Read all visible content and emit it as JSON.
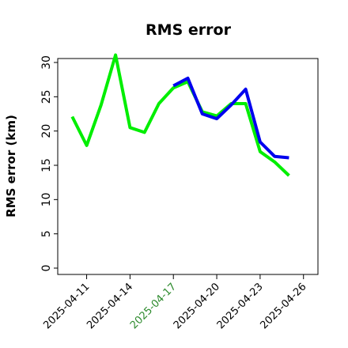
{
  "chart_data": {
    "type": "line",
    "title": "RMS error",
    "xlabel": "",
    "ylabel": "RMS error (km)",
    "ylim": [
      0,
      31.5
    ],
    "xlim": [
      "2025-04-09",
      "2025-04-27"
    ],
    "yticks": [
      0,
      5,
      10,
      15,
      20,
      25,
      30
    ],
    "xticks": [
      {
        "date": "2025-04-11",
        "label": "2025-04-11",
        "color": "#000000"
      },
      {
        "date": "2025-04-14",
        "label": "2025-04-14",
        "color": "#000000"
      },
      {
        "date": "2025-04-17",
        "label": "2025-04-17",
        "color": "#2e8b2e"
      },
      {
        "date": "2025-04-20",
        "label": "2025-04-20",
        "color": "#000000"
      },
      {
        "date": "2025-04-23",
        "label": "2025-04-23",
        "color": "#000000"
      },
      {
        "date": "2025-04-26",
        "label": "2025-04-26",
        "color": "#000000"
      }
    ],
    "grid": false,
    "series": [
      {
        "color": "#00ee00",
        "points": [
          {
            "x": "2025-04-10",
            "y": 22.1
          },
          {
            "x": "2025-04-11",
            "y": 17.9
          },
          {
            "x": "2025-04-12",
            "y": 23.8
          },
          {
            "x": "2025-04-13",
            "y": 31.1
          },
          {
            "x": "2025-04-14",
            "y": 20.5
          },
          {
            "x": "2025-04-15",
            "y": 19.8
          },
          {
            "x": "2025-04-16",
            "y": 24.0
          },
          {
            "x": "2025-04-17",
            "y": 26.3
          },
          {
            "x": "2025-04-18",
            "y": 27.2
          },
          {
            "x": "2025-04-19",
            "y": 22.8
          },
          {
            "x": "2025-04-20",
            "y": 22.2
          },
          {
            "x": "2025-04-21",
            "y": 24.0
          },
          {
            "x": "2025-04-22",
            "y": 24.0
          },
          {
            "x": "2025-04-23",
            "y": 17.0
          },
          {
            "x": "2025-04-24",
            "y": 15.5
          },
          {
            "x": "2025-04-25",
            "y": 13.5
          }
        ]
      },
      {
        "color": "#0000ee",
        "points": [
          {
            "x": "2025-04-17",
            "y": 26.6
          },
          {
            "x": "2025-04-18",
            "y": 27.7
          },
          {
            "x": "2025-04-19",
            "y": 22.5
          },
          {
            "x": "2025-04-20",
            "y": 21.8
          },
          {
            "x": "2025-04-21",
            "y": 23.8
          },
          {
            "x": "2025-04-22",
            "y": 26.1
          },
          {
            "x": "2025-04-23",
            "y": 18.4
          },
          {
            "x": "2025-04-24",
            "y": 16.3
          },
          {
            "x": "2025-04-25",
            "y": 16.1
          }
        ]
      }
    ]
  }
}
